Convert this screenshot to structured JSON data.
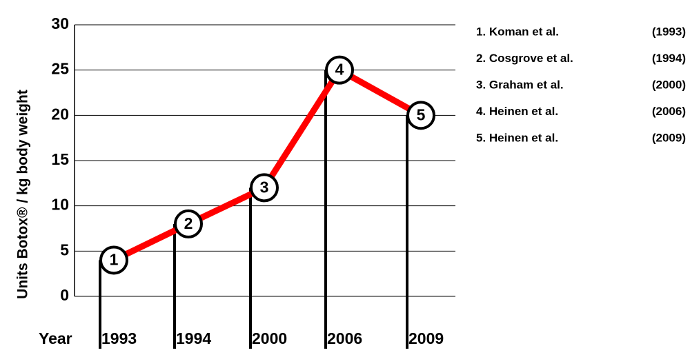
{
  "chart_data": {
    "type": "line",
    "y_label": "Units Botox® /  kg  body weight",
    "x_label": "Year",
    "categories": [
      "1993",
      "1994",
      "2000",
      "2006",
      "2009"
    ],
    "values": [
      4,
      8,
      12,
      25,
      20
    ],
    "marker_labels": [
      "1",
      "2",
      "3",
      "4",
      "5"
    ],
    "color": "#ff0000",
    "ylim": [
      0,
      30
    ],
    "yticks": [
      0,
      5,
      10,
      15,
      20,
      25,
      30
    ],
    "grid": true,
    "references": [
      {
        "label": "1. Koman et al.",
        "year": "(1993)"
      },
      {
        "label": "2. Cosgrove et al.",
        "year": "(1994)"
      },
      {
        "label": "3. Graham et al.",
        "year": "(2000)"
      },
      {
        "label": "4. Heinen et al.",
        "year": "(2006)"
      },
      {
        "label": "5. Heinen et al.",
        "year": "(2009)"
      }
    ]
  }
}
